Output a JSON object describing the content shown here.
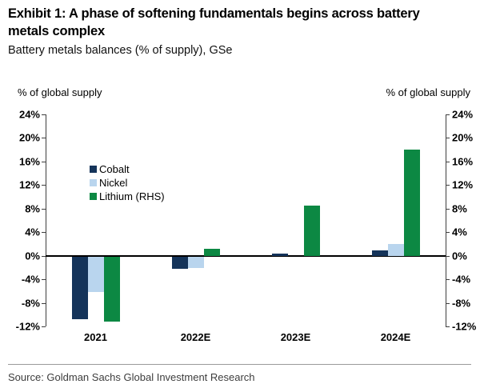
{
  "header": {
    "exhibit_title": "Exhibit 1: A phase of softening fundamentals begins across battery\nmetals complex",
    "subtitle": "Battery metals balances (% of supply), GSe"
  },
  "chart_data": {
    "type": "bar",
    "categories": [
      "2021",
      "2022E",
      "2023E",
      "2024E"
    ],
    "series": [
      {
        "name": "Cobalt",
        "color": "#15345a",
        "values": [
          -10.7,
          -2.1,
          0.3,
          0.9
        ]
      },
      {
        "name": "Nickel",
        "color": "#b9d5ee",
        "values": [
          -6.0,
          -2.0,
          0.0,
          2.0
        ]
      },
      {
        "name": "Lithium (RHS)",
        "color": "#0c8843",
        "values": [
          -11.0,
          1.2,
          8.5,
          18.0
        ]
      }
    ],
    "left_axis_title": "% of global supply",
    "right_axis_title": "% of global supply",
    "ylim": [
      -12,
      24
    ],
    "ytick_step": 4,
    "tick_suffix": "%",
    "grid": false,
    "legend_position": "inside-upper-left"
  },
  "footer": {
    "source": "Source: Goldman Sachs Global Investment Research"
  }
}
